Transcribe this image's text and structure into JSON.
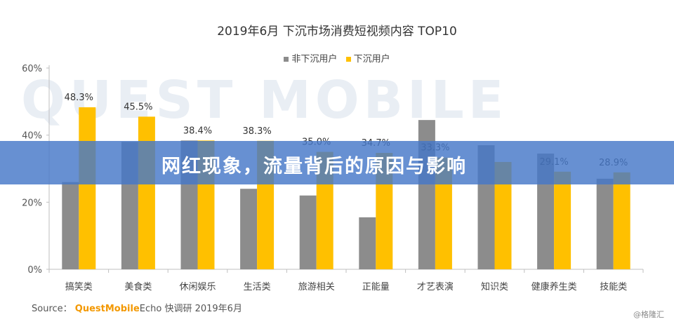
{
  "chart_data": {
    "type": "bar",
    "title": "2019年6月 下沉市场消费短视频内容 TOP10",
    "categories": [
      "搞笑类",
      "美食类",
      "休闲娱乐",
      "生活类",
      "旅游相关",
      "正能量",
      "才艺表演",
      "知识类",
      "健康养生类",
      "技能类"
    ],
    "series": [
      {
        "name": "非下沉用户",
        "values": [
          26.0,
          38.0,
          38.4,
          24.0,
          22.0,
          15.5,
          44.5,
          37.0,
          34.5,
          27.0
        ],
        "color": "#8c8c8c"
      },
      {
        "name": "下沉用户",
        "values": [
          48.3,
          45.5,
          38.4,
          38.3,
          35.0,
          34.7,
          33.3,
          32.0,
          29.1,
          28.9
        ],
        "color": "#ffc000"
      }
    ],
    "data_labels": [
      "48.3%",
      "45.5%",
      "38.4%",
      "38.3%",
      "35.0%",
      "34.7%",
      "33.3%",
      "",
      "29.1%",
      "28.9%"
    ],
    "y_ticks": [
      "0%",
      "20%",
      "40%",
      "60%"
    ],
    "ylim": [
      0,
      60
    ],
    "grid": false,
    "legend_position": "top-center"
  },
  "source": {
    "label": "Source：",
    "brand": "QuestMobile",
    "text": "Echo 快调研 2019年6月"
  },
  "watermark_text": "QUEST MOBILE",
  "banner_text": "网红现象，流量背后的原因与影响",
  "credit_text": "@格隆汇"
}
